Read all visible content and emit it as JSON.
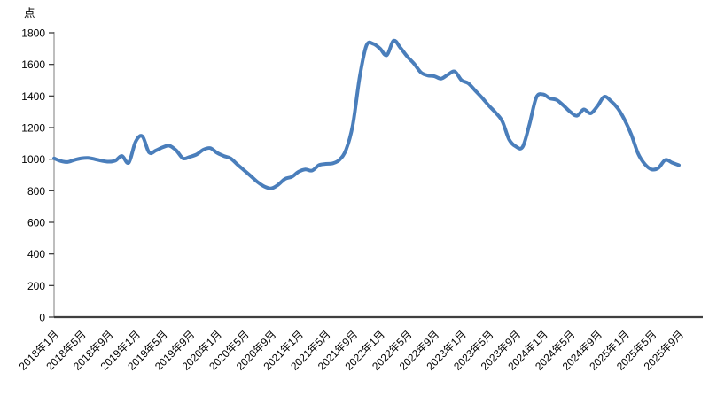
{
  "chart_data": {
    "type": "line",
    "title": "",
    "unit_label": "点",
    "ylabel": "",
    "xlabel": "",
    "ylim": [
      0,
      1800
    ],
    "y_tick_step": 200,
    "grid": false,
    "legend": false,
    "frequency": "monthly",
    "start_month": "2018年1月",
    "end_month": "2025年9月",
    "x_tick_every": 4,
    "x_tick_labels": [
      "2018年1月",
      "2018年5月",
      "2018年9月",
      "2019年1月",
      "2019年5月",
      "2019年9月",
      "2020年1月",
      "2020年5月",
      "2020年9月",
      "2021年1月",
      "2021年5月",
      "2021年9月",
      "2022年1月",
      "2022年5月",
      "2022年9月",
      "2023年1月",
      "2023年5月",
      "2023年9月",
      "2024年1月",
      "2024年5月",
      "2024年9月",
      "2025年1月",
      "2025年5月",
      "2025年9月"
    ],
    "line_color": "#4a7ebb",
    "axis_color": "#3f3f3f",
    "y_axis_line_color": "#9b9b9b",
    "values": [
      1005,
      988,
      982,
      995,
      1005,
      1008,
      1000,
      990,
      984,
      990,
      1020,
      978,
      1110,
      1145,
      1042,
      1055,
      1075,
      1085,
      1055,
      1005,
      1015,
      1030,
      1060,
      1070,
      1040,
      1020,
      1005,
      966,
      929,
      892,
      854,
      826,
      815,
      838,
      875,
      888,
      920,
      935,
      928,
      962,
      970,
      973,
      995,
      1060,
      1220,
      1520,
      1720,
      1730,
      1700,
      1658,
      1750,
      1705,
      1650,
      1605,
      1550,
      1530,
      1525,
      1510,
      1535,
      1555,
      1500,
      1480,
      1435,
      1390,
      1340,
      1295,
      1240,
      1125,
      1080,
      1078,
      1220,
      1390,
      1410,
      1385,
      1375,
      1340,
      1300,
      1275,
      1315,
      1290,
      1335,
      1395,
      1368,
      1322,
      1250,
      1155,
      1035,
      968,
      935,
      945,
      995,
      978,
      962
    ]
  }
}
